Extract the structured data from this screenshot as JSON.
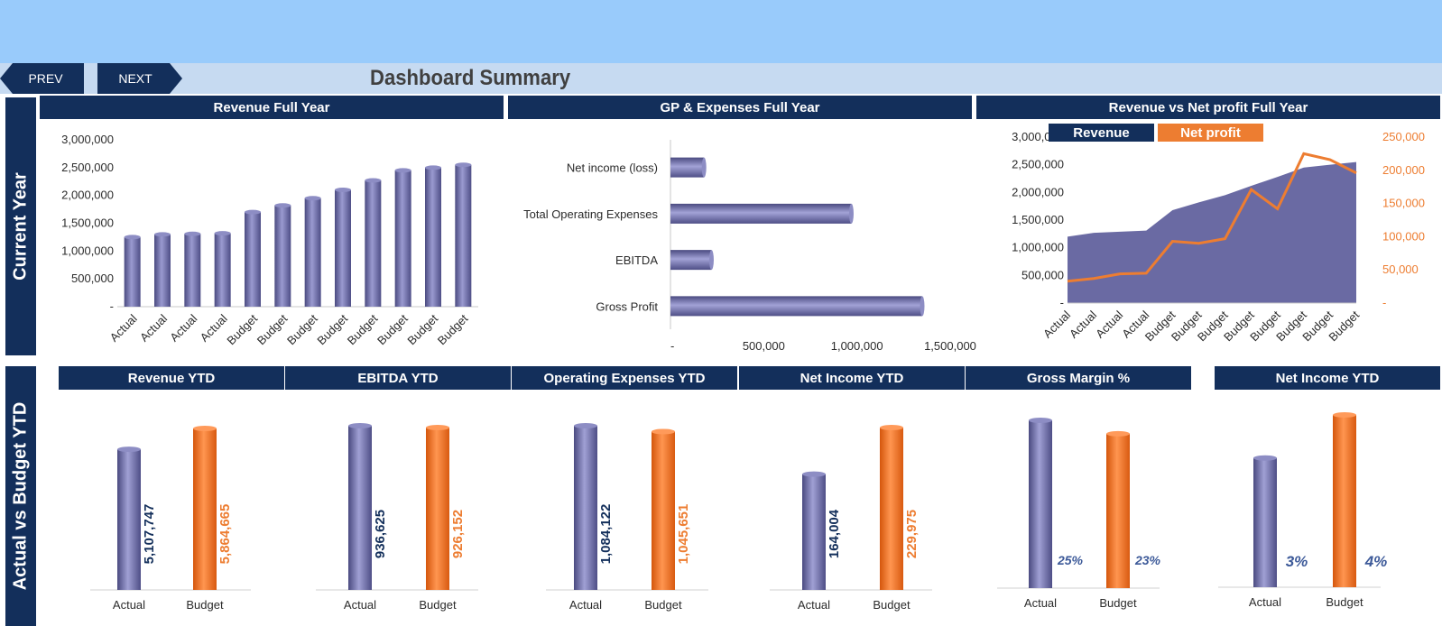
{
  "nav": {
    "prev_label": "PREV",
    "next_label": "NEXT"
  },
  "page_title": "Dashboard Summary",
  "side_labels": {
    "current_year": "Current Year",
    "actual_vs_budget": "Actual vs Budget YTD"
  },
  "colors": {
    "navy": "#132f5b",
    "bar_purple": "#6a6aa3",
    "orange": "#ed7d31",
    "top_band": "#99cbfb",
    "nav_band": "#c6daf1"
  },
  "chart_data": [
    {
      "id": "revenue_full_year",
      "type": "bar",
      "title": "Revenue Full Year",
      "categories": [
        "Actual",
        "Actual",
        "Actual",
        "Actual",
        "Budget",
        "Budget",
        "Budget",
        "Budget",
        "Budget",
        "Budget",
        "Budget",
        "Budget"
      ],
      "values": [
        1250000,
        1300000,
        1310000,
        1320000,
        1700000,
        1820000,
        1950000,
        2100000,
        2270000,
        2450000,
        2500000,
        2550000
      ],
      "y_ticks": [
        "-",
        "500,000",
        "1,000,000",
        "1,500,000",
        "2,000,000",
        "2,500,000",
        "3,000,000"
      ],
      "ylim": [
        0,
        3000000
      ]
    },
    {
      "id": "gp_expenses_full_year",
      "type": "bar",
      "orientation": "horizontal",
      "title": "GP & Expenses Full Year",
      "categories": [
        "Net income (loss)",
        "Total Operating Expenses",
        "EBITDA",
        "Gross Profit"
      ],
      "values": [
        180000,
        970000,
        220000,
        1350000
      ],
      "x_ticks": [
        "-",
        "500,000",
        "1,000,000",
        "1,500,000"
      ],
      "xlim": [
        0,
        1500000
      ]
    },
    {
      "id": "revenue_vs_net_profit",
      "type": "area",
      "title": "Revenue vs Net profit Full Year",
      "categories": [
        "Actual",
        "Actual",
        "Actual",
        "Actual",
        "Budget",
        "Budget",
        "Budget",
        "Budget",
        "Budget",
        "Budget",
        "Budget",
        "Budget"
      ],
      "series": [
        {
          "name": "Revenue",
          "type": "area",
          "axis": "left",
          "values": [
            1200000,
            1270000,
            1290000,
            1310000,
            1680000,
            1820000,
            1950000,
            2120000,
            2280000,
            2450000,
            2500000,
            2550000
          ]
        },
        {
          "name": "Net profit",
          "type": "line",
          "axis": "right",
          "values": [
            33000,
            37000,
            44000,
            45000,
            93000,
            90000,
            97000,
            171000,
            142000,
            225000,
            216000,
            196000
          ]
        }
      ],
      "y_ticks_left": [
        "-",
        "500,000",
        "1,000,000",
        "1,500,000",
        "2,000,000",
        "2,500,000",
        "3,000,000"
      ],
      "y_ticks_right": [
        "-",
        "50,000",
        "100,000",
        "150,000",
        "200,000",
        "250,000"
      ],
      "ylim_left": [
        0,
        3000000
      ],
      "ylim_right": [
        0,
        250000
      ],
      "legend_position": "top-left"
    },
    {
      "id": "revenue_ytd",
      "type": "bar",
      "title": "Revenue YTD",
      "categories": [
        "Actual",
        "Budget"
      ],
      "values": [
        5107747,
        5864665
      ],
      "labels": [
        "5,107,747",
        "5,864,665"
      ]
    },
    {
      "id": "ebitda_ytd",
      "type": "bar",
      "title": "EBITDA YTD",
      "categories": [
        "Actual",
        "Budget"
      ],
      "values": [
        936625,
        926152
      ],
      "labels": [
        "936,625",
        "926,152"
      ]
    },
    {
      "id": "opex_ytd",
      "type": "bar",
      "title": "Operating  Expenses YTD",
      "categories": [
        "Actual",
        "Budget"
      ],
      "values": [
        1084122,
        1045651
      ],
      "labels": [
        "1,084,122",
        "1,045,651"
      ]
    },
    {
      "id": "net_income_ytd",
      "type": "bar",
      "title": "Net Income YTD",
      "categories": [
        "Actual",
        "Budget"
      ],
      "values": [
        164004,
        229975
      ],
      "labels": [
        "164,004",
        "229,975"
      ]
    },
    {
      "id": "gross_margin_pct",
      "type": "bar",
      "title": "Gross Margin %",
      "categories": [
        "Actual",
        "Budget"
      ],
      "values": [
        25,
        23
      ],
      "labels": [
        "25%",
        "23%"
      ]
    },
    {
      "id": "net_income_ytd_pct",
      "type": "bar",
      "title": "Net Income  YTD",
      "categories": [
        "Actual",
        "Budget"
      ],
      "values": [
        3,
        4
      ],
      "labels": [
        "3%",
        "4%"
      ]
    }
  ]
}
